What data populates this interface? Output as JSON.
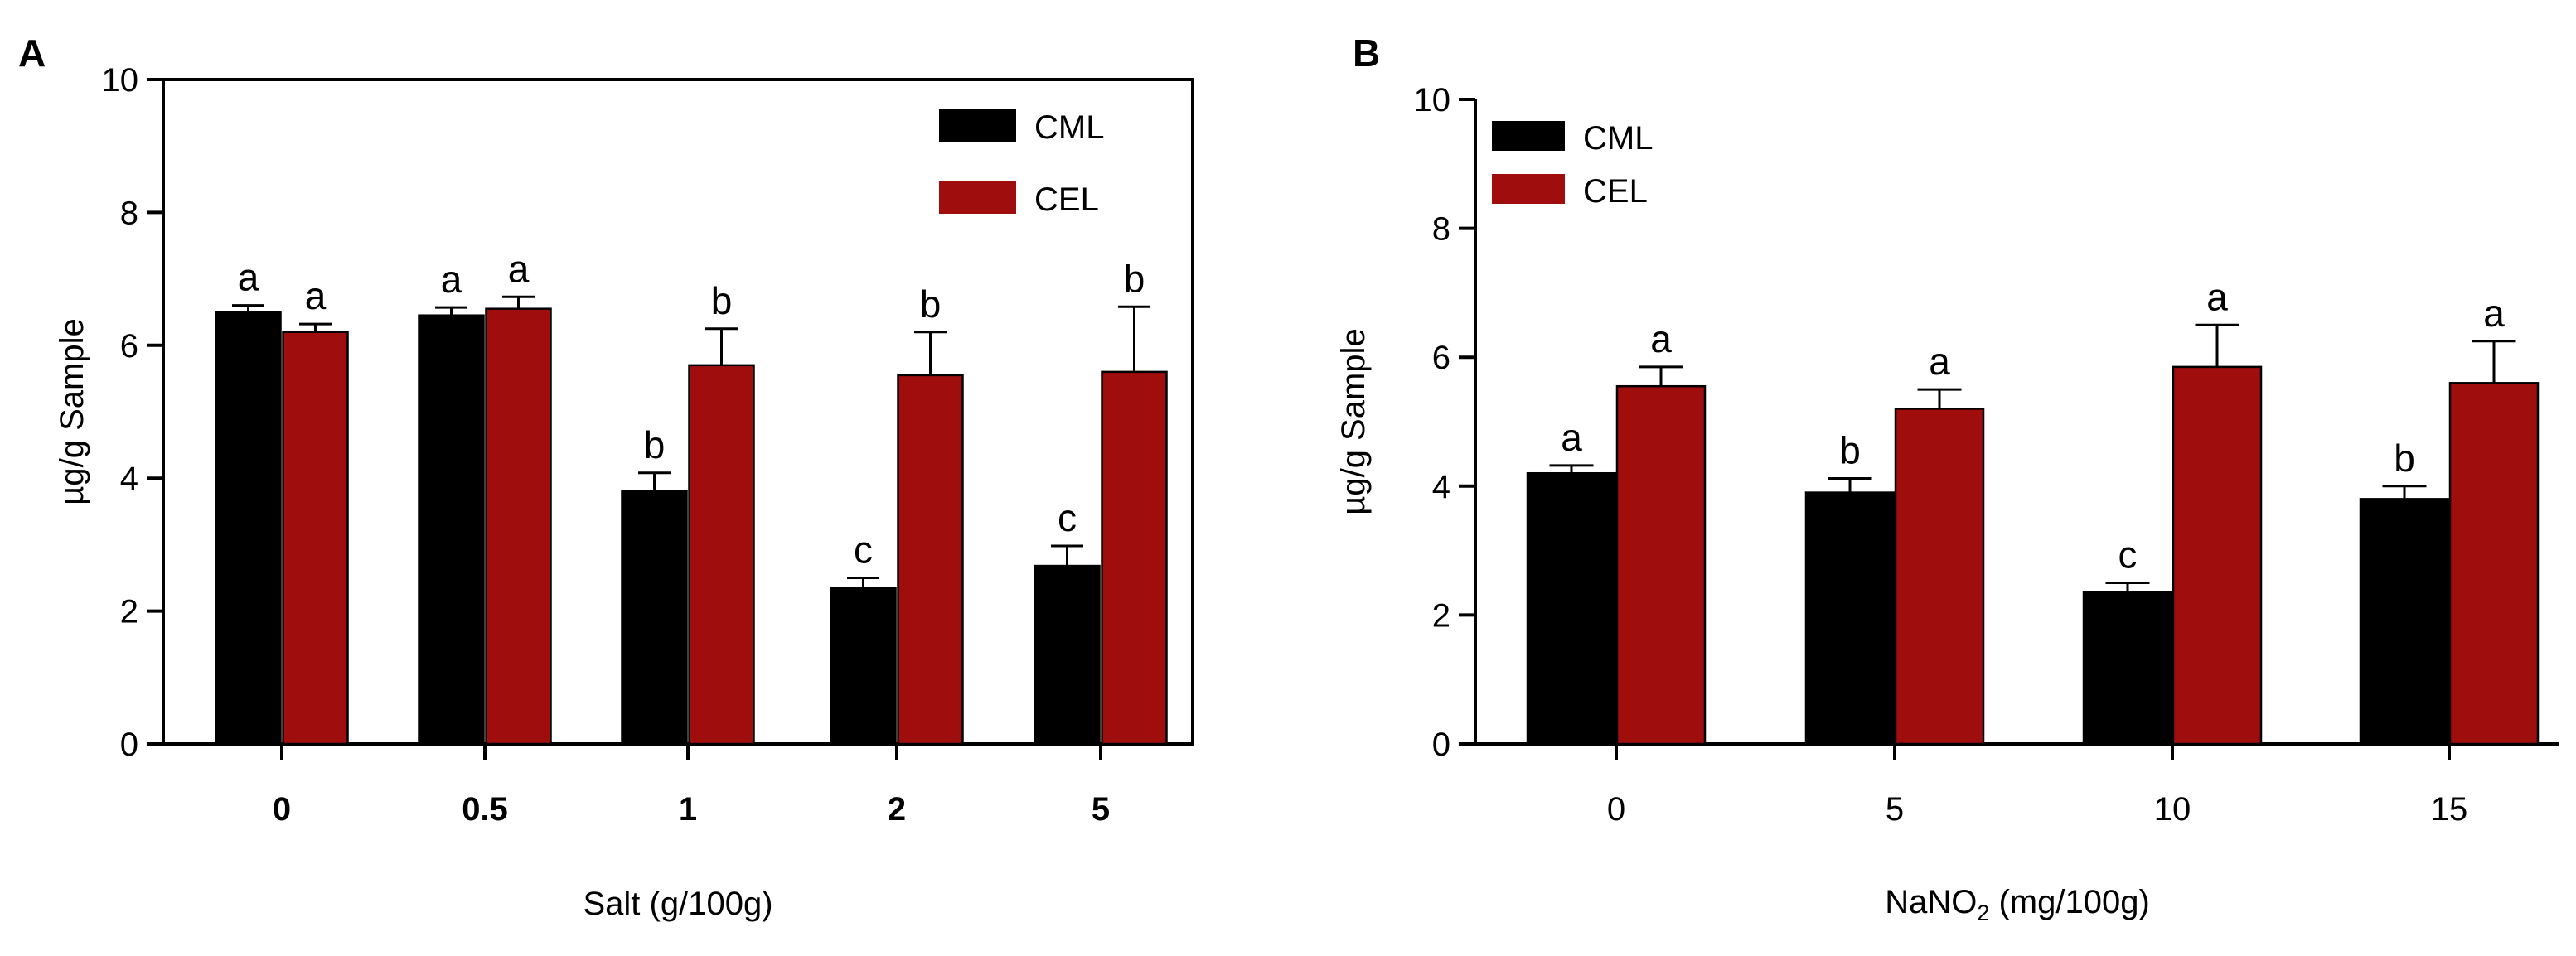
{
  "figure": {
    "background": "#ffffff"
  },
  "colors": {
    "CML": "#000000",
    "CEL": "#a00d0d"
  },
  "chart_data": [
    {
      "type": "bar",
      "panel": "A",
      "xlabel": "Salt (g/100g)",
      "ylabel": "µg/g Sample",
      "ylim": [
        0,
        10
      ],
      "yticks": [
        0,
        2,
        4,
        6,
        8,
        10
      ],
      "categories": [
        "0",
        "0.5",
        "1",
        "2",
        "5"
      ],
      "legend": {
        "position": "top-right",
        "entries": [
          "CML",
          "CEL"
        ]
      },
      "series": [
        {
          "name": "CML",
          "color": "#000000",
          "values": [
            6.5,
            6.45,
            3.8,
            2.35,
            2.68
          ],
          "errors": [
            0.1,
            0.12,
            0.28,
            0.15,
            0.3
          ],
          "letters": [
            "a",
            "a",
            "b",
            "c",
            "c"
          ]
        },
        {
          "name": "CEL",
          "color": "#a00d0d",
          "values": [
            6.2,
            6.55,
            5.7,
            5.55,
            5.6
          ],
          "errors": [
            0.12,
            0.18,
            0.55,
            0.65,
            0.98
          ],
          "letters": [
            "a",
            "a",
            "b",
            "b",
            "b"
          ]
        }
      ]
    },
    {
      "type": "bar",
      "panel": "B",
      "xlabel_main": "NaNO",
      "xlabel_sub": "2",
      "xlabel_rest": " (mg/100g)",
      "ylabel": "µg/g Sample",
      "ylim": [
        0,
        10
      ],
      "yticks": [
        0,
        2,
        4,
        6,
        8,
        10
      ],
      "categories": [
        "0",
        "5",
        "10",
        "15"
      ],
      "legend": {
        "position": "top-left",
        "entries": [
          "CML",
          "CEL"
        ]
      },
      "series": [
        {
          "name": "CML",
          "color": "#000000",
          "values": [
            4.2,
            3.9,
            2.35,
            3.8
          ],
          "errors": [
            0.12,
            0.22,
            0.15,
            0.2
          ],
          "letters": [
            "a",
            "b",
            "c",
            "b"
          ]
        },
        {
          "name": "CEL",
          "color": "#a00d0d",
          "values": [
            5.55,
            5.2,
            5.85,
            5.6
          ],
          "errors": [
            0.3,
            0.3,
            0.65,
            0.65
          ],
          "letters": [
            "a",
            "a",
            "a",
            "a"
          ]
        }
      ]
    }
  ]
}
